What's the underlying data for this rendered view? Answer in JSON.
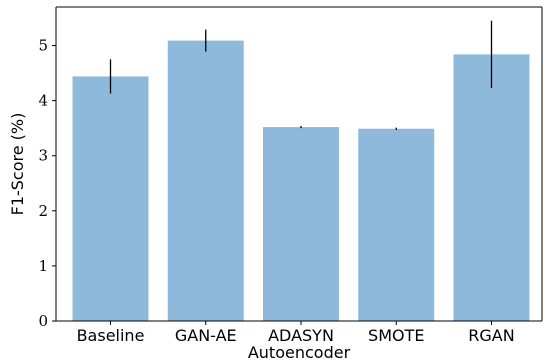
{
  "chart_data": {
    "type": "bar",
    "xlabel": "Autoencoder",
    "ylabel": "F1-Score (%)",
    "categories": [
      "Baseline",
      "GAN-AE",
      "ADASYN",
      "SMOTE",
      "RGAN"
    ],
    "values": [
      4.44,
      5.09,
      3.52,
      3.49,
      4.84
    ],
    "error": [
      0.31,
      0.2,
      0.02,
      0.02,
      0.61
    ],
    "ylim": [
      0,
      5.7
    ],
    "yticks": [
      "0",
      "1",
      "2",
      "3",
      "4",
      "5"
    ],
    "grid": false,
    "bar_color": "#8fb9db",
    "error_color": "#000000"
  }
}
